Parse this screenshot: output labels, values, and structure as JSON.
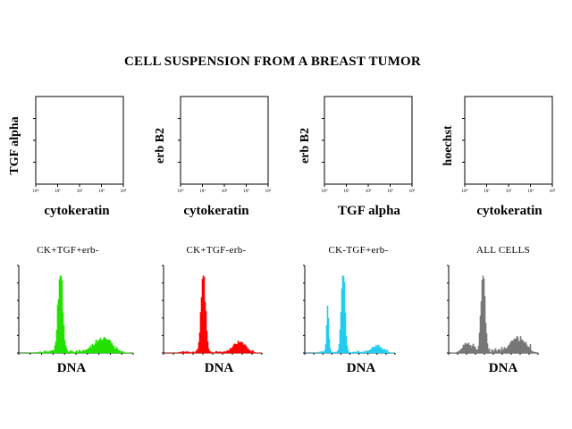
{
  "title": "CELL SUSPENSION FROM A BREAST TUMOR",
  "chart_data": [
    {
      "type": "scatter",
      "ylabel": "TGF alpha",
      "xlabel": "cytokeratin",
      "xscale": "log",
      "xticks": [
        "10⁰",
        "10¹",
        "10²",
        "10³",
        "10⁴"
      ],
      "points": []
    },
    {
      "type": "scatter",
      "ylabel": "erb B2",
      "xlabel": "cytokeratin",
      "xscale": "log",
      "xticks": [
        "10⁰",
        "10¹",
        "10²",
        "10³",
        "10⁴"
      ],
      "points": []
    },
    {
      "type": "scatter",
      "ylabel": "erb B2",
      "xlabel": "TGF alpha",
      "xscale": "log",
      "xticks": [
        "10⁰",
        "10¹",
        "10²",
        "10³",
        "10⁴"
      ],
      "points": []
    },
    {
      "type": "scatter",
      "ylabel": "hoechst",
      "xlabel": "cytokeratin",
      "xscale": "log",
      "xticks": [
        "10⁰",
        "10¹",
        "10²",
        "10³",
        "10⁴"
      ],
      "points": []
    },
    {
      "type": "histogram",
      "header": "CK+TGF+erb-",
      "xlabel": "DNA",
      "color": "#22e000",
      "peaks": [
        {
          "x": 0.36,
          "h": 0.98,
          "w": 0.02
        },
        {
          "x": 0.73,
          "h": 0.15,
          "w": 0.07
        }
      ],
      "noise": 0.03
    },
    {
      "type": "histogram",
      "header": "CK+TGF-erb-",
      "xlabel": "DNA",
      "color": "#ff0000",
      "peaks": [
        {
          "x": 0.4,
          "h": 0.96,
          "w": 0.022
        },
        {
          "x": 0.77,
          "h": 0.12,
          "w": 0.06
        }
      ],
      "noise": 0.02
    },
    {
      "type": "histogram",
      "header": "CK-TGF+erb-",
      "xlabel": "DNA",
      "color": "#22ccee",
      "peaks": [
        {
          "x": 0.25,
          "h": 0.48,
          "w": 0.012
        },
        {
          "x": 0.42,
          "h": 0.95,
          "w": 0.02
        },
        {
          "x": 0.8,
          "h": 0.07,
          "w": 0.06
        }
      ],
      "noise": 0.02
    },
    {
      "type": "histogram",
      "header": "ALL CELLS",
      "xlabel": "DNA",
      "color": "#777777",
      "peaks": [
        {
          "x": 0.38,
          "h": 0.95,
          "w": 0.022
        },
        {
          "x": 0.77,
          "h": 0.14,
          "w": 0.08
        },
        {
          "x": 0.2,
          "h": 0.1,
          "w": 0.05
        }
      ],
      "noise": 0.06
    }
  ]
}
